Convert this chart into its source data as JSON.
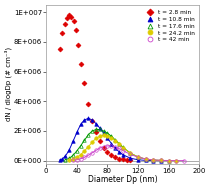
{
  "title": "",
  "xlabel": "Diameter Dp (nm)",
  "ylabel": "dN / dlogDp (# cm⁻³)",
  "xlim": [
    0,
    200
  ],
  "ylim": [
    -200000.0,
    10500000.0
  ],
  "yticks": [
    0,
    2000000.0,
    4000000.0,
    6000000.0,
    8000000.0,
    10000000.0
  ],
  "ytick_labels": [
    "0E+000",
    "2E+006",
    "4E+006",
    "6E+006",
    "8E+006",
    "1E+007"
  ],
  "xticks": [
    0,
    40,
    80,
    120,
    160,
    200
  ],
  "series": [
    {
      "label": "t = 2.8 min",
      "color": "#dd0000",
      "marker": "D",
      "filled": true,
      "markersize": 2.5,
      "dp": [
        18,
        21,
        24,
        27,
        30,
        33,
        36,
        39,
        42,
        46,
        50,
        55,
        60,
        65,
        70,
        75,
        80,
        85,
        90,
        95,
        100,
        105,
        110
      ],
      "dN": [
        7500000.0,
        8600000.0,
        9200000.0,
        9600000.0,
        9800000.0,
        9700000.0,
        9400000.0,
        8800000.0,
        7800000.0,
        6500000.0,
        5200000.0,
        3800000.0,
        2700000.0,
        1900000.0,
        1300000.0,
        850000.0,
        550000.0,
        350000.0,
        220000.0,
        140000.0,
        90000.0,
        55000.0,
        35000.0
      ],
      "line": false
    },
    {
      "label": "t = 10.8 min",
      "color": "#0000cc",
      "marker": "^",
      "filled": true,
      "markersize": 2.5,
      "dp": [
        18,
        21,
        25,
        30,
        35,
        40,
        45,
        50,
        55,
        60,
        65,
        70,
        75,
        80,
        85,
        90,
        95,
        100,
        110,
        120,
        130,
        140,
        150
      ],
      "dN": [
        30000.0,
        100000.0,
        300000.0,
        700000.0,
        1300000.0,
        1900000.0,
        2450000.0,
        2750000.0,
        2850000.0,
        2750000.0,
        2500000.0,
        2200000.0,
        1850000.0,
        1500000.0,
        1150000.0,
        850000.0,
        600000.0,
        400000.0,
        160000.0,
        55000.0,
        15000.0,
        4000.0,
        1000.0
      ],
      "line": true
    },
    {
      "label": "t = 17.6 min",
      "color": "#009900",
      "marker": "^",
      "filled": false,
      "markersize": 2.5,
      "dp": [
        25,
        30,
        35,
        40,
        45,
        50,
        55,
        60,
        65,
        70,
        75,
        80,
        85,
        90,
        95,
        100,
        110,
        120,
        130,
        140,
        150,
        160
      ],
      "dN": [
        50000.0,
        150000.0,
        350000.0,
        650000.0,
        1000000.0,
        1400000.0,
        1750000.0,
        2000000.0,
        2100000.0,
        2100000.0,
        2000000.0,
        1850000.0,
        1650000.0,
        1400000.0,
        1150000.0,
        900000.0,
        500000.0,
        240000.0,
        100000.0,
        35000.0,
        10000.0,
        2500.0
      ],
      "line": true
    },
    {
      "label": "t = 24.2 min",
      "color": "#ddcc00",
      "marker": "o",
      "filled": true,
      "markersize": 2.5,
      "dp": [
        30,
        35,
        40,
        45,
        50,
        55,
        60,
        65,
        70,
        75,
        80,
        85,
        90,
        95,
        100,
        110,
        120,
        130,
        140,
        150,
        160,
        170
      ],
      "dN": [
        30000.0,
        90000.0,
        220000.0,
        400000.0,
        650000.0,
        950000.0,
        1250000.0,
        1500000.0,
        1650000.0,
        1720000.0,
        1680000.0,
        1550000.0,
        1350000.0,
        1120000.0,
        880000.0,
        500000.0,
        240000.0,
        100000.0,
        35000.0,
        10000.0,
        2500.0,
        500.0
      ],
      "line": true
    },
    {
      "label": "t = 42 min",
      "color": "#cc44cc",
      "marker": "o",
      "filled": false,
      "markersize": 2.5,
      "dp": [
        35,
        40,
        45,
        50,
        55,
        60,
        65,
        70,
        75,
        80,
        85,
        90,
        95,
        100,
        110,
        120,
        130,
        140,
        150,
        160,
        170,
        180
      ],
      "dN": [
        20000.0,
        55000.0,
        120000.0,
        220000.0,
        360000.0,
        520000.0,
        700000.0,
        850000.0,
        950000.0,
        1000000.0,
        980000.0,
        920000.0,
        820000.0,
        680000.0,
        420000.0,
        230000.0,
        110000.0,
        45000.0,
        15000.0,
        4500.0,
        1200.0,
        300.0
      ],
      "line": true
    }
  ],
  "bg_color": "#ffffff",
  "figsize": [
    2.11,
    1.89
  ],
  "dpi": 100
}
